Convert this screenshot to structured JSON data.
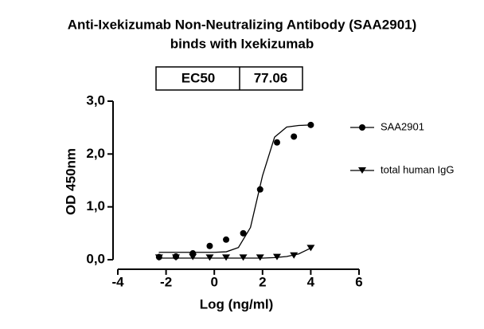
{
  "chart_data": {
    "type": "scatter",
    "title": [
      "Anti-Ixekizumab Non-Neutralizing Antibody (SAA2901)",
      "binds with Ixekizumab"
    ],
    "annotation_table": {
      "label": "EC50",
      "value": 77.06
    },
    "x_label": "Log (ng/ml)",
    "y_label": "OD 450nm",
    "xlim": [
      -4,
      6
    ],
    "xticks": [
      -4,
      -2,
      0,
      2,
      4,
      6
    ],
    "ylim": [
      0,
      3
    ],
    "yticks": [
      {
        "value": 0,
        "label": "0,0"
      },
      {
        "value": 1,
        "label": "1,0"
      },
      {
        "value": 2,
        "label": "2,0"
      },
      {
        "value": 3,
        "label": "3,0"
      }
    ],
    "legend": "right",
    "series": [
      {
        "name": "SAA2901",
        "color": "#000000",
        "marker": "circle",
        "x": [
          4,
          3.3,
          2.6,
          1.9,
          1.2,
          0.49,
          -0.19,
          -0.89,
          -1.59,
          -2.29
        ],
        "values": [
          2.55,
          2.33,
          2.22,
          1.33,
          0.5,
          0.38,
          0.26,
          0.12,
          0.06,
          0.05
        ],
        "fit": {
          "x": [
            -2.3,
            -1.5,
            -1,
            -0.5,
            0,
            0.5,
            1,
            1.5,
            2,
            2.5,
            3,
            3.5,
            4
          ],
          "values": [
            0.14,
            0.14,
            0.14,
            0.14,
            0.14,
            0.15,
            0.23,
            0.61,
            1.59,
            2.32,
            2.51,
            2.54,
            2.55
          ]
        }
      },
      {
        "name": "total human IgG",
        "color": "#000000",
        "marker": "triangle-down",
        "x": [
          4,
          3.3,
          2.6,
          1.9,
          1.2,
          0.49,
          -0.19,
          -0.89,
          -1.59,
          -2.29
        ],
        "values": [
          0.22,
          0.08,
          0.05,
          0.04,
          0.04,
          0.04,
          0.04,
          0.05,
          0.04,
          0.04
        ],
        "fit": {
          "x": [
            -2.3,
            -1.5,
            -1,
            -0.5,
            0,
            0.5,
            1,
            1.5,
            2,
            2.5,
            3,
            3.5,
            4
          ],
          "values": [
            0.03,
            0.03,
            0.03,
            0.03,
            0.03,
            0.03,
            0.03,
            0.03,
            0.03,
            0.04,
            0.06,
            0.11,
            0.22
          ]
        }
      }
    ]
  }
}
